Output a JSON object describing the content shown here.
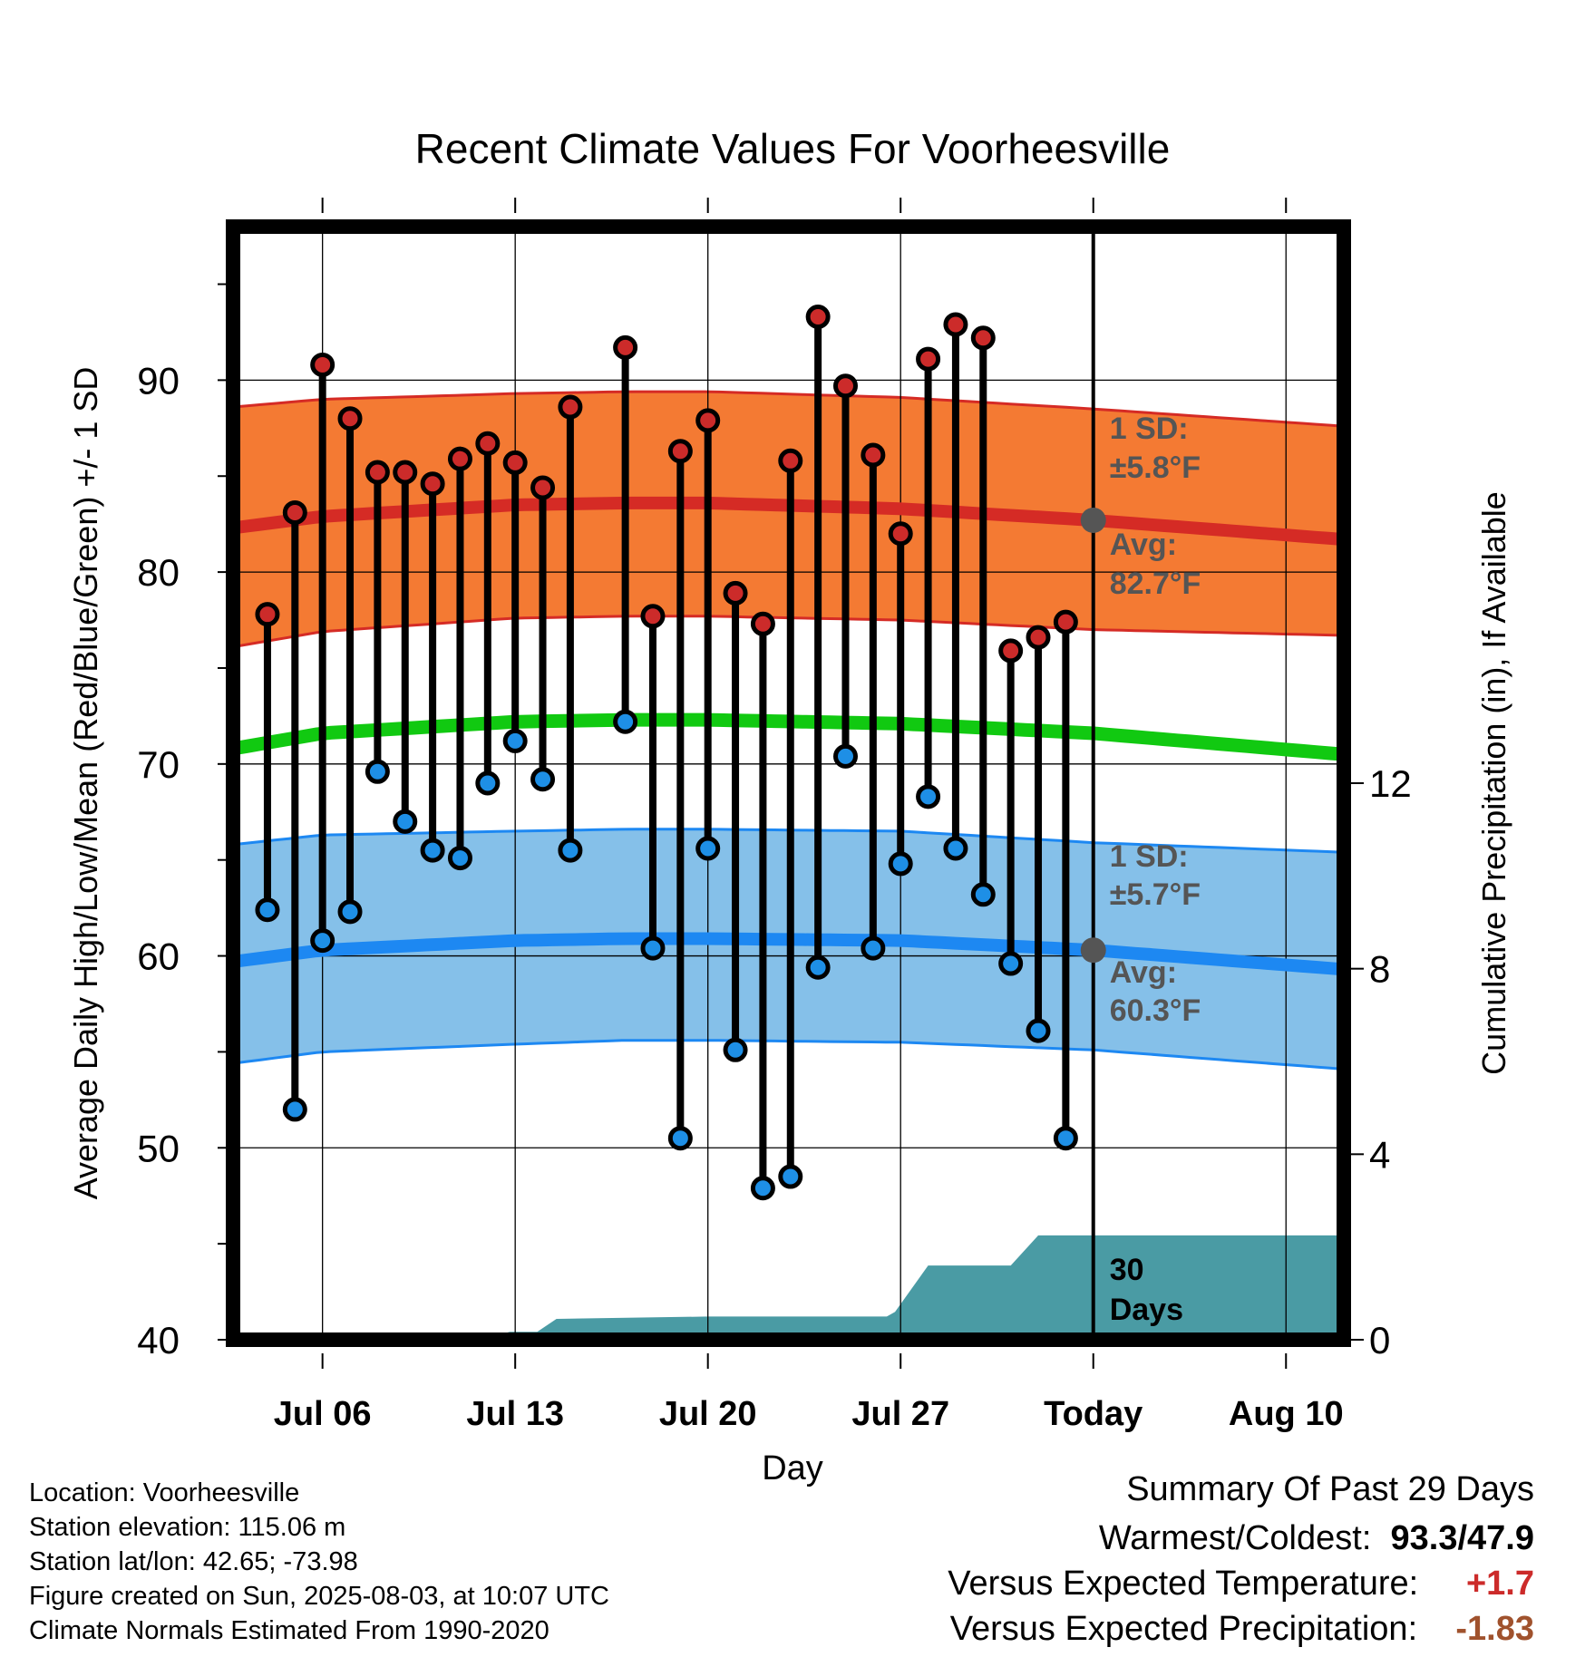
{
  "chart_data": {
    "type": "scatter",
    "title": "Recent Climate Values For Voorheesville",
    "xlabel": "Day",
    "ylabel": "Average Daily High/Low/Mean (Red/Blue/Green) +/- 1 SD",
    "ylabel_right": "Cumulative Precipitation (in), If Available",
    "ylim": [
      40,
      98
    ],
    "y_ticks": [
      "40",
      "50",
      "60",
      "70",
      "80",
      "90"
    ],
    "y2lim": [
      0,
      24
    ],
    "y2_ticks": [
      "0",
      "4",
      "8",
      "12"
    ],
    "x_ticks": [
      {
        "label": "Jul 06",
        "day": 6
      },
      {
        "label": "Jul 13",
        "day": 13
      },
      {
        "label": "Jul 20",
        "day": 20
      },
      {
        "label": "Jul 27",
        "day": 27
      },
      {
        "label": "Today",
        "day": 34
      },
      {
        "label": "Aug 10",
        "day": 41
      }
    ],
    "x_range_days": [
      2.75,
      43.1
    ],
    "today_day": 34,
    "days": [
      5,
      6,
      7,
      8,
      9,
      10,
      11,
      12,
      13,
      14,
      15,
      16,
      18,
      19,
      20,
      21,
      22,
      23,
      24,
      25,
      26,
      27,
      28,
      29,
      30,
      31,
      32,
      33
    ],
    "highs": [
      77.8,
      83.1,
      90.8,
      88.0,
      85.2,
      85.2,
      84.6,
      85.9,
      86.7,
      85.7,
      84.4,
      88.6,
      91.7,
      77.7,
      86.3,
      87.9,
      78.9,
      77.3,
      85.8,
      93.3,
      89.7,
      86.1,
      82.0,
      91.1,
      92.9,
      92.2,
      75.9,
      76.6,
      77.4
    ],
    "lows": [
      62.4,
      52.0,
      60.8,
      62.3,
      69.6,
      67.0,
      65.5,
      65.1,
      69.0,
      71.2,
      69.2,
      65.5,
      72.2,
      60.4,
      50.5,
      65.6,
      55.1,
      47.9,
      48.5,
      59.4,
      70.4,
      60.4,
      64.8,
      68.3,
      65.6,
      63.2,
      59.6,
      56.1,
      50.5
    ],
    "obs_days": [
      4,
      5,
      6,
      7,
      8,
      9,
      10,
      11,
      12,
      13,
      14,
      15,
      17,
      18,
      19,
      20,
      21,
      22,
      23,
      24,
      25,
      26,
      27,
      28,
      29,
      30,
      31,
      32,
      33
    ],
    "normals": {
      "days": [
        2.75,
        6,
        13,
        17,
        20,
        27,
        34,
        43.1
      ],
      "high_avg": [
        82.3,
        82.9,
        83.5,
        83.6,
        83.6,
        83.3,
        82.7,
        81.7
      ],
      "high_sd_upper": [
        88.6,
        89.0,
        89.3,
        89.4,
        89.4,
        89.1,
        88.5,
        87.6
      ],
      "high_sd_lower": [
        76.1,
        76.9,
        77.6,
        77.7,
        77.7,
        77.5,
        77.0,
        76.7
      ],
      "mean": [
        70.8,
        71.6,
        72.2,
        72.3,
        72.3,
        72.1,
        71.6,
        70.5
      ],
      "low_avg": [
        59.7,
        60.3,
        60.8,
        60.9,
        60.9,
        60.8,
        60.3,
        59.3
      ],
      "low_sd_upper": [
        65.8,
        66.3,
        66.5,
        66.6,
        66.6,
        66.5,
        65.9,
        65.4
      ],
      "low_sd_lower": [
        54.4,
        55.0,
        55.4,
        55.6,
        55.6,
        55.5,
        55.1,
        54.1
      ]
    },
    "precip_cumulative": {
      "x": [
        2.75,
        11.8,
        12.8,
        13.1,
        13.8,
        14.5,
        20,
        26.5,
        26.8,
        28,
        31,
        32,
        43.1
      ],
      "y": [
        0,
        0,
        0.17,
        0.17,
        0.17,
        0.45,
        0.5,
        0.5,
        0.6,
        1.6,
        1.6,
        2.25,
        2.25
      ]
    },
    "annotations": {
      "high_sd": "1 SD:",
      "high_sd_value": "±5.8°F",
      "high_avg": "Avg:",
      "high_avg_value": "82.7°F",
      "low_sd": "1 SD:",
      "low_sd_value": "±5.7°F",
      "low_avg": "Avg:",
      "low_avg_value": "60.3°F",
      "precip_days_1": "30",
      "precip_days_2": "Days"
    },
    "colors": {
      "high_band": "#F47A33",
      "high_line": "#D52B25",
      "high_dot": "#CC2B2A",
      "mean_line": "#11C911",
      "low_band": "#85C0E9",
      "low_line": "#1D88F2",
      "low_dot": "#1E8FE6",
      "precip": "#4A9BA4",
      "annotation": "#555555"
    }
  },
  "footer": {
    "location": "Location: Voorheesville",
    "elevation": "Station elevation: 115.06 m",
    "latlon": "Station lat/lon: 42.65; -73.98",
    "created": "Figure created on Sun, 2025-08-03, at 10:07 UTC",
    "normals": "Climate Normals Estimated From 1990-2020"
  },
  "summary": {
    "title": "Summary Of Past 29 Days",
    "warm_cold_label": "Warmest/Coldest:",
    "warm_cold_value": "93.3/47.9",
    "temp_label": "Versus Expected Temperature:",
    "temp_value": "+1.7",
    "temp_color": "#CC2B2A",
    "precip_label": "Versus Expected Precipitation:",
    "precip_value": "-1.83",
    "precip_color": "#A0522D"
  }
}
